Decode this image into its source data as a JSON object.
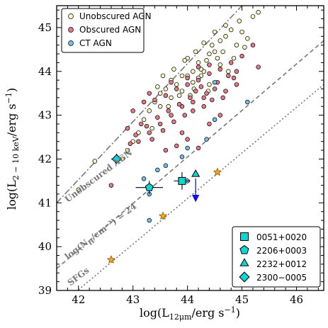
{
  "chart_data": {
    "type": "scatter",
    "xlabel": "log(L12μm/erg s⁻¹)",
    "ylabel": "log(L2−10keV/erg s⁻¹)",
    "xlim": [
      41.6,
      46.5
    ],
    "ylim": [
      39.0,
      45.5
    ],
    "xticks": [
      "42",
      "43",
      "44",
      "45",
      "46"
    ],
    "yticks": [
      "39",
      "40",
      "41",
      "42",
      "43",
      "44",
      "45"
    ],
    "grid": false,
    "legend_placement": "top-left",
    "colors": {
      "unobscured_fill": "#f6f3c4",
      "obscured_fill": "#e07a86",
      "ct_fill": "#7ab8e6",
      "source_fill": "#15d3d3",
      "sfg_star_fill": "#f5a623",
      "upper_limit_arrow": "#1010e0",
      "relation_line": "#777777"
    },
    "series": [
      {
        "name": "Unobscured AGN",
        "marker": "circle",
        "points": [
          [
            44.8,
            44.95
          ],
          [
            45.2,
            45.25
          ],
          [
            45.3,
            45.35
          ],
          [
            44.6,
            44.7
          ],
          [
            44.9,
            44.6
          ],
          [
            44.4,
            44.4
          ],
          [
            44.2,
            44.2
          ],
          [
            44.1,
            44.0
          ],
          [
            43.9,
            43.9
          ],
          [
            44.0,
            44.3
          ],
          [
            43.7,
            43.8
          ],
          [
            43.6,
            43.6
          ],
          [
            43.5,
            43.5
          ],
          [
            44.3,
            44.0
          ],
          [
            44.5,
            44.45
          ],
          [
            44.7,
            44.8
          ],
          [
            45.0,
            44.9
          ],
          [
            44.55,
            44.3
          ],
          [
            43.8,
            43.7
          ],
          [
            43.9,
            43.55
          ],
          [
            44.1,
            43.75
          ],
          [
            44.25,
            43.9
          ],
          [
            44.35,
            44.25
          ],
          [
            44.45,
            44.6
          ],
          [
            44.6,
            44.15
          ],
          [
            43.4,
            43.3
          ],
          [
            43.3,
            43.1
          ],
          [
            43.2,
            42.9
          ],
          [
            43.55,
            43.9
          ],
          [
            43.75,
            44.05
          ],
          [
            43.95,
            44.25
          ],
          [
            44.15,
            44.45
          ],
          [
            44.3,
            44.65
          ],
          [
            44.5,
            44.9
          ],
          [
            44.7,
            45.05
          ],
          [
            44.95,
            45.15
          ],
          [
            43.1,
            42.6
          ],
          [
            43.0,
            42.4
          ],
          [
            42.9,
            42.2
          ],
          [
            42.8,
            42.0
          ],
          [
            43.35,
            42.7
          ],
          [
            43.65,
            43.2
          ],
          [
            44.05,
            43.45
          ],
          [
            44.4,
            43.7
          ],
          [
            44.75,
            44.0
          ],
          [
            45.05,
            44.55
          ],
          [
            42.0,
            41.3
          ],
          [
            42.3,
            41.95
          ],
          [
            44.2,
            43.85
          ],
          [
            44.0,
            43.9
          ],
          [
            43.85,
            43.45
          ],
          [
            44.65,
            44.45
          ],
          [
            44.85,
            44.3
          ],
          [
            45.1,
            44.75
          ],
          [
            43.5,
            43.2
          ],
          [
            43.45,
            43.65
          ],
          [
            44.25,
            44.05
          ],
          [
            44.12,
            43.6
          ],
          [
            44.38,
            43.55
          ],
          [
            43.7,
            43.4
          ]
        ]
      },
      {
        "name": "Obscured AGN",
        "marker": "circle",
        "points": [
          [
            45.2,
            44.6
          ],
          [
            45.3,
            44.1
          ],
          [
            44.9,
            44.0
          ],
          [
            44.5,
            43.6
          ],
          [
            44.3,
            43.4
          ],
          [
            44.1,
            43.3
          ],
          [
            43.9,
            43.2
          ],
          [
            43.7,
            43.0
          ],
          [
            43.5,
            42.8
          ],
          [
            43.3,
            42.6
          ],
          [
            43.1,
            42.4
          ],
          [
            42.95,
            42.35
          ],
          [
            43.0,
            43.1
          ],
          [
            43.2,
            43.3
          ],
          [
            43.4,
            43.35
          ],
          [
            43.6,
            43.45
          ],
          [
            43.8,
            43.6
          ],
          [
            44.0,
            43.7
          ],
          [
            44.2,
            43.8
          ],
          [
            44.4,
            43.95
          ],
          [
            44.6,
            44.05
          ],
          [
            44.8,
            44.2
          ],
          [
            44.25,
            43.65
          ],
          [
            44.15,
            43.55
          ],
          [
            44.05,
            43.4
          ],
          [
            43.85,
            43.25
          ],
          [
            43.65,
            43.1
          ],
          [
            43.45,
            42.95
          ],
          [
            43.25,
            42.75
          ],
          [
            43.05,
            42.55
          ],
          [
            43.9,
            42.6
          ],
          [
            44.0,
            42.45
          ],
          [
            43.8,
            42.3
          ],
          [
            44.2,
            42.25
          ],
          [
            43.6,
            42.2
          ],
          [
            44.4,
            42.8
          ],
          [
            44.6,
            43.0
          ],
          [
            44.3,
            43.2
          ],
          [
            44.45,
            43.35
          ],
          [
            43.75,
            42.85
          ],
          [
            43.55,
            42.65
          ],
          [
            44.65,
            43.4
          ],
          [
            44.9,
            43.7
          ],
          [
            42.6,
            41.4
          ],
          [
            43.35,
            42.45
          ],
          [
            44.1,
            43.1
          ],
          [
            43.95,
            43.0
          ],
          [
            44.35,
            43.5
          ],
          [
            44.55,
            43.75
          ],
          [
            44.75,
            43.9
          ],
          [
            44.0,
            43.85
          ],
          [
            44.2,
            44.1
          ],
          [
            44.4,
            44.15
          ],
          [
            43.7,
            43.75
          ],
          [
            43.3,
            43.5
          ],
          [
            43.15,
            42.8
          ],
          [
            42.9,
            42.7
          ],
          [
            44.7,
            43.55
          ],
          [
            44.85,
            43.85
          ],
          [
            45.0,
            44.35
          ]
        ]
      },
      {
        "name": "CT AGN",
        "marker": "circle",
        "points": [
          [
            45.1,
            43.3
          ],
          [
            44.5,
            42.9
          ],
          [
            44.35,
            42.45
          ],
          [
            44.0,
            42.25
          ],
          [
            43.9,
            42.05
          ],
          [
            43.6,
            41.85
          ],
          [
            43.45,
            41.75
          ],
          [
            43.2,
            41.55
          ],
          [
            43.3,
            41.2
          ],
          [
            43.3,
            40.6
          ],
          [
            44.0,
            41.5
          ],
          [
            44.5,
            43.75
          ]
        ]
      },
      {
        "name": "SFGs",
        "marker": "star",
        "points": [
          [
            42.6,
            39.7
          ],
          [
            43.55,
            40.7
          ],
          [
            44.55,
            41.7
          ]
        ]
      }
    ],
    "highlighted_sources": [
      {
        "name": "0051+0020",
        "marker": "square",
        "x": 43.9,
        "y": 41.5,
        "xerr": 0.15,
        "yerr": 0.2,
        "upper_limit": false
      },
      {
        "name": "2206+0003",
        "marker": "pentagon",
        "x": 43.3,
        "y": 41.35,
        "xerr": 0.25,
        "yerr": 0.15,
        "upper_limit": false
      },
      {
        "name": "2232+0012",
        "marker": "triangle",
        "x": 44.15,
        "y": 41.65,
        "xerr": 0,
        "yerr": 0,
        "upper_limit": true
      },
      {
        "name": "2300−0005",
        "marker": "diamond",
        "x": 42.7,
        "y": 42.0,
        "xerr": 0.1,
        "yerr": 0.12,
        "upper_limit": false
      }
    ],
    "relations": [
      {
        "name": "Unobscured AGN",
        "style": "dashdot",
        "x": [
          41.6,
          45.0
        ],
        "y": [
          41.0,
          45.5
        ]
      },
      {
        "name": "log(NH/cm⁻²) = 24",
        "style": "dashed",
        "x": [
          41.6,
          46.5
        ],
        "y": [
          39.5,
          44.7
        ]
      },
      {
        "name": "SFGs",
        "style": "dotted",
        "x": [
          41.6,
          46.5
        ],
        "y": [
          38.6,
          43.7
        ]
      }
    ],
    "line_labels": {
      "unobscured": "Unobscured AGN",
      "nh_prefix": "log(N",
      "nh_sub": "H",
      "nh_suffix": "/cm⁻²) = 24",
      "sfg": "SFGs"
    },
    "axis_text": {
      "x_prefix": "log(L",
      "x_sub": "12μm",
      "x_suffix": "/erg s",
      "x_sup": "−1",
      "x_close": ")",
      "y_prefix": "log(L",
      "y_sub": "2 − 10 keV",
      "y_suffix": "/erg s",
      "y_sup": "−1",
      "y_close": ")"
    }
  }
}
